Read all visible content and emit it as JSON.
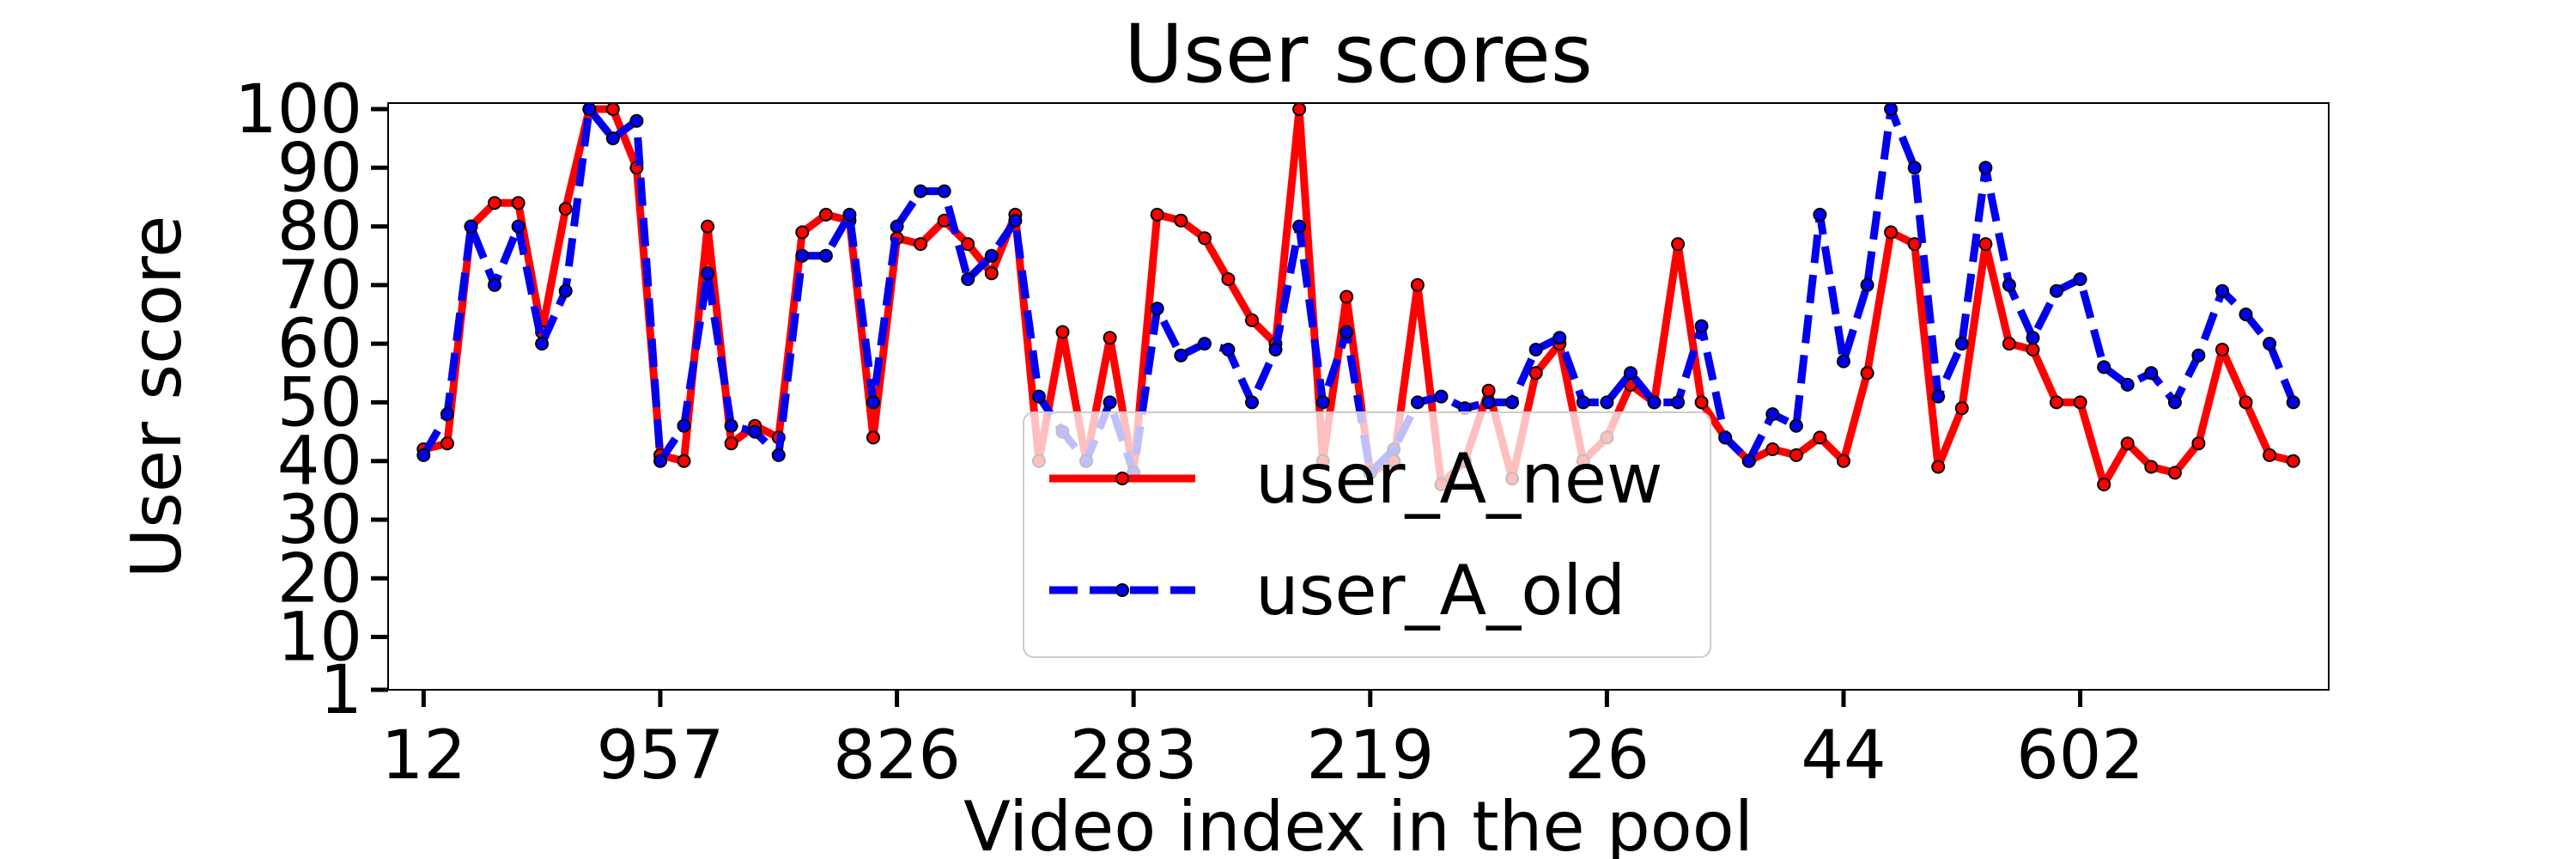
{
  "chart_data": {
    "type": "line",
    "title": "User scores",
    "xlabel": "Video index in the pool",
    "ylabel": "User score",
    "ylim": [
      1,
      100
    ],
    "y_ticks": [
      1,
      10,
      20,
      30,
      40,
      50,
      60,
      70,
      80,
      90,
      100
    ],
    "x_tick_labels": [
      "12",
      "957",
      "826",
      "283",
      "219",
      "26",
      "44",
      "602"
    ],
    "x_tick_positions": [
      0,
      10,
      20,
      30,
      40,
      50,
      60,
      70
    ],
    "x_range": [
      -1.5,
      80.5
    ],
    "grid": false,
    "legend_position": "lower-center",
    "series": [
      {
        "name": "user_A_new",
        "color": "#ff0000",
        "line_style": "solid",
        "values": [
          42,
          43,
          80,
          84,
          84,
          62,
          83,
          100,
          100,
          90,
          41,
          40,
          80,
          43,
          46,
          44,
          79,
          82,
          81,
          44,
          78,
          77,
          81,
          77,
          72,
          82,
          40,
          62,
          40,
          61,
          38,
          82,
          81,
          78,
          71,
          64,
          60,
          100,
          40,
          68,
          38,
          40,
          70,
          36,
          40,
          52,
          37,
          55,
          60,
          40,
          44,
          53,
          50,
          77,
          50,
          44,
          40,
          42,
          41,
          44,
          40,
          55,
          79,
          77,
          39,
          49,
          77,
          60,
          59,
          50,
          50,
          36,
          43,
          39,
          38,
          43,
          59,
          50,
          41,
          40
        ]
      },
      {
        "name": "user_A_old",
        "color": "#0000ee",
        "line_style": "dashed",
        "values": [
          41,
          48,
          80,
          70,
          80,
          60,
          69,
          100,
          95,
          98,
          40,
          46,
          72,
          46,
          45,
          41,
          75,
          75,
          82,
          50,
          80,
          86,
          86,
          71,
          75,
          81,
          51,
          45,
          40,
          50,
          38,
          66,
          58,
          60,
          59,
          50,
          59,
          80,
          50,
          62,
          38,
          42,
          50,
          51,
          49,
          50,
          50,
          59,
          61,
          50,
          50,
          55,
          50,
          50,
          63,
          44,
          40,
          48,
          46,
          82,
          57,
          70,
          100,
          90,
          51,
          60,
          90,
          70,
          61,
          69,
          71,
          56,
          53,
          55,
          50,
          58,
          69,
          65,
          60,
          50
        ]
      }
    ]
  }
}
